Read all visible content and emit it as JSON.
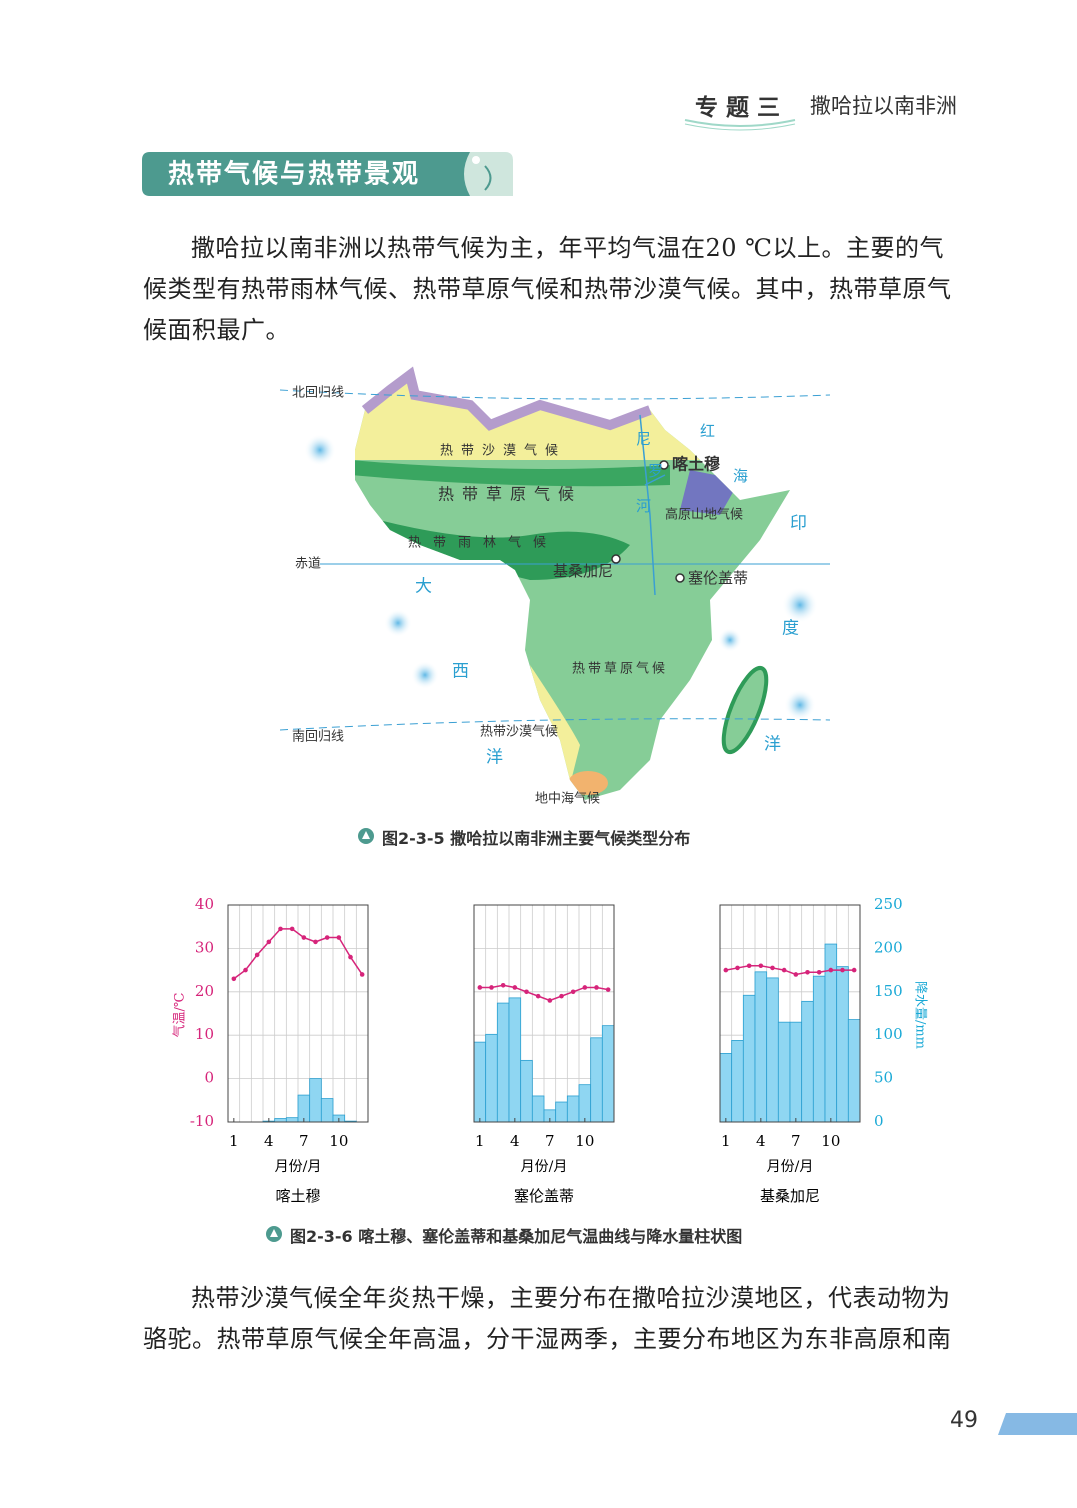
{
  "header": {
    "topic": "专 题 三",
    "subtitle": "撒哈拉以南非洲"
  },
  "section_title": "热带气候与热带景观",
  "paragraphs": [
    "撒哈拉以南非洲以热带气候为主，年平均气温在20 ℃以上。主要的气候类型有热带雨林气候、热带草原气候和热带沙漠气候。其中，热带草原气候面积最广。",
    "热带沙漠气候全年炎热干燥，主要分布在撒哈拉沙漠地区，代表动物为骆驼。热带草原气候全年高温，分干湿两季，主要分布地区为东非高原和南非高"
  ],
  "map": {
    "tropic_north": "北回归线",
    "equator": "赤道",
    "tropic_south": "南回归线",
    "desert_north": "热带沙漠气候",
    "savanna_north": "热带草原气候",
    "rainforest": "热带雨林气候",
    "highland": "高原山地气候",
    "savanna_south": "热带草原气候",
    "desert_south": "热带沙漠气候",
    "mediterranean": "地中海气候",
    "khartoum": "喀土穆",
    "kisangani": "基桑加尼",
    "serengeti": "塞伦盖蒂",
    "nile": [
      "尼",
      "罗",
      "河"
    ],
    "red_sea": [
      "红",
      "海"
    ],
    "atlantic": [
      "大",
      "西",
      "洋"
    ],
    "indian": [
      "印",
      "度",
      "洋"
    ],
    "caption": "图2-3-5 撒哈拉以南非洲主要气候类型分布"
  },
  "climate_charts": {
    "y_label": "气温/℃",
    "y2_label": "降水量/mm",
    "x_label": "月份/月",
    "ylim": [
      -10,
      40
    ],
    "yticks": [
      -10,
      0,
      10,
      20,
      30,
      40
    ],
    "y2lim": [
      0,
      250
    ],
    "y2ticks": [
      0,
      50,
      100,
      150,
      200,
      250
    ],
    "months": [
      1,
      2,
      3,
      4,
      5,
      6,
      7,
      8,
      9,
      10,
      11,
      12
    ],
    "xticks": [
      1,
      4,
      7,
      10
    ],
    "temperature_color": "#d6247a",
    "precipitation_color": "#8fd6f2",
    "charts": [
      {
        "name": "喀土穆",
        "temperature": [
          23,
          25,
          28.5,
          31.5,
          34.5,
          34.5,
          32.5,
          31.5,
          32.5,
          32.5,
          28,
          24
        ],
        "precipitation": [
          0,
          0,
          0,
          1,
          4,
          5,
          31,
          50,
          27,
          8,
          1,
          0
        ]
      },
      {
        "name": "塞伦盖蒂",
        "temperature": [
          21,
          21,
          21.5,
          21,
          20,
          19,
          18,
          19,
          20,
          21,
          21,
          20.5
        ],
        "precipitation": [
          92,
          101,
          137,
          143,
          71,
          30,
          14,
          23,
          30,
          43,
          97,
          111
        ]
      },
      {
        "name": "基桑加尼",
        "temperature": [
          25,
          25.5,
          26,
          26,
          25.5,
          25,
          24,
          24.5,
          24.5,
          25,
          25,
          25
        ],
        "precipitation": [
          79,
          94,
          146,
          173,
          166,
          115,
          115,
          139,
          168,
          205,
          179,
          118
        ]
      }
    ],
    "caption": "图2-3-6 喀土穆、塞伦盖蒂和基桑加尼气温曲线与降水量柱状图"
  },
  "page_number": "49"
}
